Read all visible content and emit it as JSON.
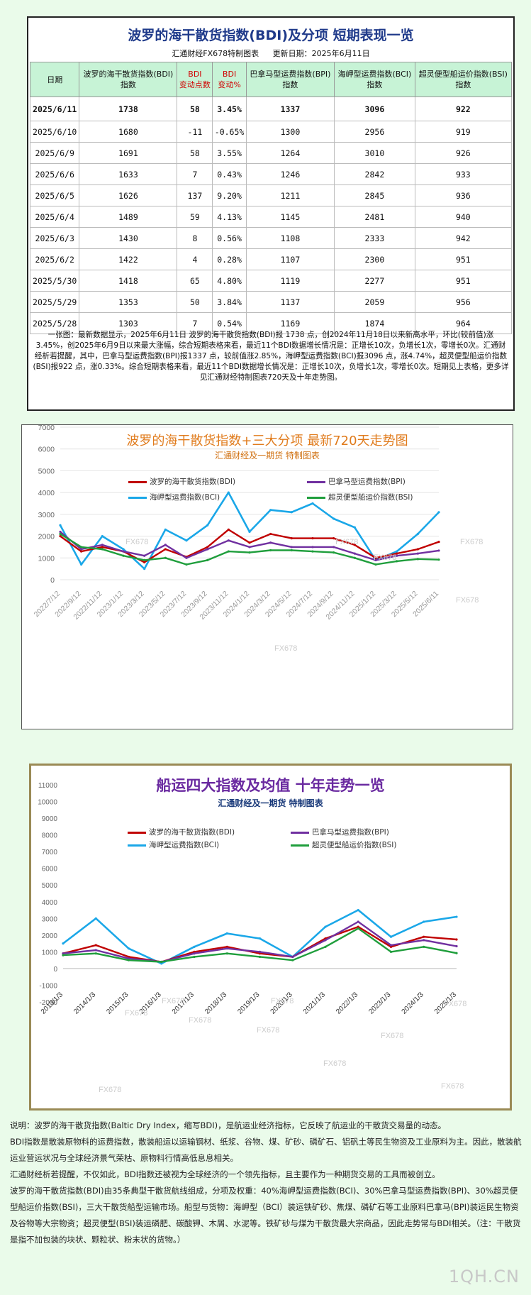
{
  "panel": {
    "title": "波罗的海干散货指数(BDI)及分项  短期表现一览",
    "maker": "汇通财经FX678特制图表",
    "update": "更新日期：2025年6月11日",
    "headers": [
      "日期",
      "波罗的海干散货指数(BDI)·指数",
      "BDI·变动点数",
      "BDI·变动%",
      "巴拿马型运费指数(BPI)·指数",
      "海岬型运费指数(BCI)·指数",
      "超灵便型船运价指数(BSI)·指数"
    ],
    "rows": [
      [
        "2025/6/11",
        "1738",
        "58",
        "3.45%",
        "1337",
        "3096",
        "922"
      ],
      [
        "2025/6/10",
        "1680",
        "-11",
        "-0.65%",
        "1300",
        "2956",
        "919"
      ],
      [
        "2025/6/9",
        "1691",
        "58",
        "3.55%",
        "1264",
        "3010",
        "926"
      ],
      [
        "2025/6/6",
        "1633",
        "7",
        "0.43%",
        "1246",
        "2842",
        "933"
      ],
      [
        "2025/6/5",
        "1626",
        "137",
        "9.20%",
        "1211",
        "2845",
        "936"
      ],
      [
        "2025/6/4",
        "1489",
        "59",
        "4.13%",
        "1145",
        "2481",
        "940"
      ],
      [
        "2025/6/3",
        "1430",
        "8",
        "0.56%",
        "1108",
        "2333",
        "942"
      ],
      [
        "2025/6/2",
        "1422",
        "4",
        "0.28%",
        "1107",
        "2300",
        "951"
      ],
      [
        "2025/5/30",
        "1418",
        "65",
        "4.80%",
        "1119",
        "2277",
        "951"
      ],
      [
        "2025/5/29",
        "1353",
        "50",
        "3.84%",
        "1137",
        "2059",
        "956"
      ],
      [
        "2025/5/28",
        "1303",
        "7",
        "0.54%",
        "1169",
        "1874",
        "964"
      ]
    ],
    "summary": "一张图：最新数据显示，2025年6月11日 波罗的海干散货指数(BDI)报 1738 点，创2024年11月18日以来新高水平，环比(较前值)涨3.45%，创2025年6月9日以来最大涨幅，综合短期表格来看，最近11个BDI数据增长情况是：正增长10次，负增长1次，零增长0次。汇通财经析若提醒，其中，巴拿马型运费指数(BPI)报1337 点，较前值涨2.85%，海岬型运费指数(BCI)报3096 点，涨4.74%，超灵便型船运价指数(BSI)报922 点，涨0.33%。综合短期表格来看，最近11个BDI数据增长情况是：正增长10次，负增长1次，零增长0次。短期见上表格，更多详见汇通财经特制图表720天及十年走势图。"
  },
  "chart1": {
    "title": "波罗的海干散货指数+三大分项  最新720天走势图",
    "subtitle": "汇通财经及一期货  特制图表",
    "watermark": "FX678"
  },
  "chart2": {
    "title": "船运四大指数及均值 十年走势一览",
    "subtitle": "汇通财经及一期货 特制图表",
    "watermark": "FX678"
  },
  "colors": {
    "bdi": "#c00000",
    "bpi": "#7030a0",
    "bci": "#1aa7e8",
    "bsi": "#1f9e3c"
  },
  "chart_data": [
    {
      "type": "line",
      "title": "波罗的海干散货指数+三大分项  最新720天走势图",
      "x": [
        "2022/7/12",
        "2022/9/12",
        "2022/11/12",
        "2023/1/12",
        "2023/3/12",
        "2023/5/12",
        "2023/7/12",
        "2023/9/12",
        "2023/11/12",
        "2024/1/12",
        "2024/3/12",
        "2024/5/12",
        "2024/7/12",
        "2024/9/12",
        "2024/11/12",
        "2025/1/12",
        "2025/3/12",
        "2025/5/12",
        "2025/6/11"
      ],
      "ylim": [
        0,
        7000
      ],
      "yticks": [
        0,
        1000,
        2000,
        3000,
        4000,
        5000,
        6000,
        7000
      ],
      "grid": true,
      "legend": "top",
      "series": [
        {
          "name": "波罗的海干散货指数(BDI)",
          "values": [
            2000,
            1300,
            1500,
            1300,
            800,
            1400,
            1050,
            1500,
            2300,
            1700,
            2100,
            1900,
            1900,
            1900,
            1600,
            1000,
            1200,
            1400,
            1738
          ]
        },
        {
          "name": "巴拿马型运费指数(BPI)",
          "values": [
            2200,
            1400,
            1600,
            1300,
            1100,
            1600,
            1000,
            1400,
            1800,
            1500,
            1700,
            1500,
            1500,
            1500,
            1200,
            900,
            1100,
            1200,
            1337
          ]
        },
        {
          "name": "海岬型运费指数(BCI)",
          "values": [
            2500,
            700,
            2000,
            1400,
            500,
            2300,
            1800,
            2500,
            4000,
            2200,
            3200,
            3100,
            3500,
            2800,
            2400,
            900,
            1300,
            2100,
            3096
          ]
        },
        {
          "name": "超灵便型船运价指数(BSI)",
          "values": [
            2100,
            1500,
            1400,
            1100,
            900,
            1000,
            700,
            900,
            1300,
            1250,
            1350,
            1350,
            1300,
            1250,
            1000,
            700,
            850,
            950,
            922
          ]
        }
      ]
    },
    {
      "type": "line",
      "title": "船运四大指数及均值 十年走势一览",
      "x": [
        "2013/1/3",
        "2014/1/3",
        "2015/1/3",
        "2016/1/3",
        "2017/1/3",
        "2018/1/3",
        "2019/1/3",
        "2020/1/3",
        "2021/1/3",
        "2022/1/3",
        "2023/1/3",
        "2024/1/3",
        "2025/1/3"
      ],
      "ylim": [
        -2000,
        11000
      ],
      "yticks": [
        -2000,
        -1000,
        0,
        1000,
        2000,
        3000,
        4000,
        5000,
        6000,
        7000,
        8000,
        9000,
        10000,
        11000
      ],
      "grid": false,
      "legend": "top",
      "series": [
        {
          "name": "波罗的海干散货指数(BDI)",
          "values": [
            900,
            1400,
            700,
            400,
            1000,
            1300,
            900,
            700,
            1800,
            2500,
            1300,
            1900,
            1738
          ]
        },
        {
          "name": "巴拿马型运费指数(BPI)",
          "values": [
            900,
            1100,
            600,
            400,
            900,
            1200,
            1000,
            700,
            1700,
            2800,
            1400,
            1700,
            1337
          ]
        },
        {
          "name": "海岬型运费指数(BCI)",
          "values": [
            1500,
            3000,
            1200,
            300,
            1300,
            2100,
            1800,
            700,
            2500,
            3500,
            1900,
            2800,
            3096
          ]
        },
        {
          "name": "超灵便型船运价指数(BSI)",
          "values": [
            800,
            900,
            500,
            400,
            700,
            900,
            700,
            500,
            1300,
            2400,
            1000,
            1300,
            922
          ]
        }
      ]
    }
  ],
  "notes": [
    "说明：波罗的海干散货指数(Baltic Dry Index，缩写BDI)，是航运业经济指标，它反映了航运业的干散货交易量的动态。",
    "BDI指数是散装原物料的运费指数，散装船运以运输钢材、纸浆、谷物、煤、矿砂、磷矿石、铝矾土等民生物资及工业原料为主。因此，散装航运业营运状况与全球经济景气荣枯、原物料行情高低息息相关。",
    "汇通财经析若提醒，不仅如此，BDI指数还被视为全球经济的一个领先指标，且主要作为一种期货交易的工具而被创立。",
    "波罗的海干散货指数(BDI)由35条典型干散货航线组成，分项及权重：40%海岬型运费指数(BCI)、30%巴拿马型运费指数(BPI)、30%超灵便型船运价指数(BSI)，三大干散货船型运输市场。船型与货物：海岬型（BCI）装运铁矿砂、焦煤、磷矿石等工业原料巴拿马(BPI)装运民生物资及谷物等大宗物资；超灵便型(BSI)装运磷肥、碳酸钾、木屑、水泥等。铁矿砂与煤为干散货最大宗商品，因此走势常与BDI相关。（注：干散货是指不加包装的块状、颗粒状、粉末状的货物。）"
  ],
  "brand": "1QH.CN"
}
